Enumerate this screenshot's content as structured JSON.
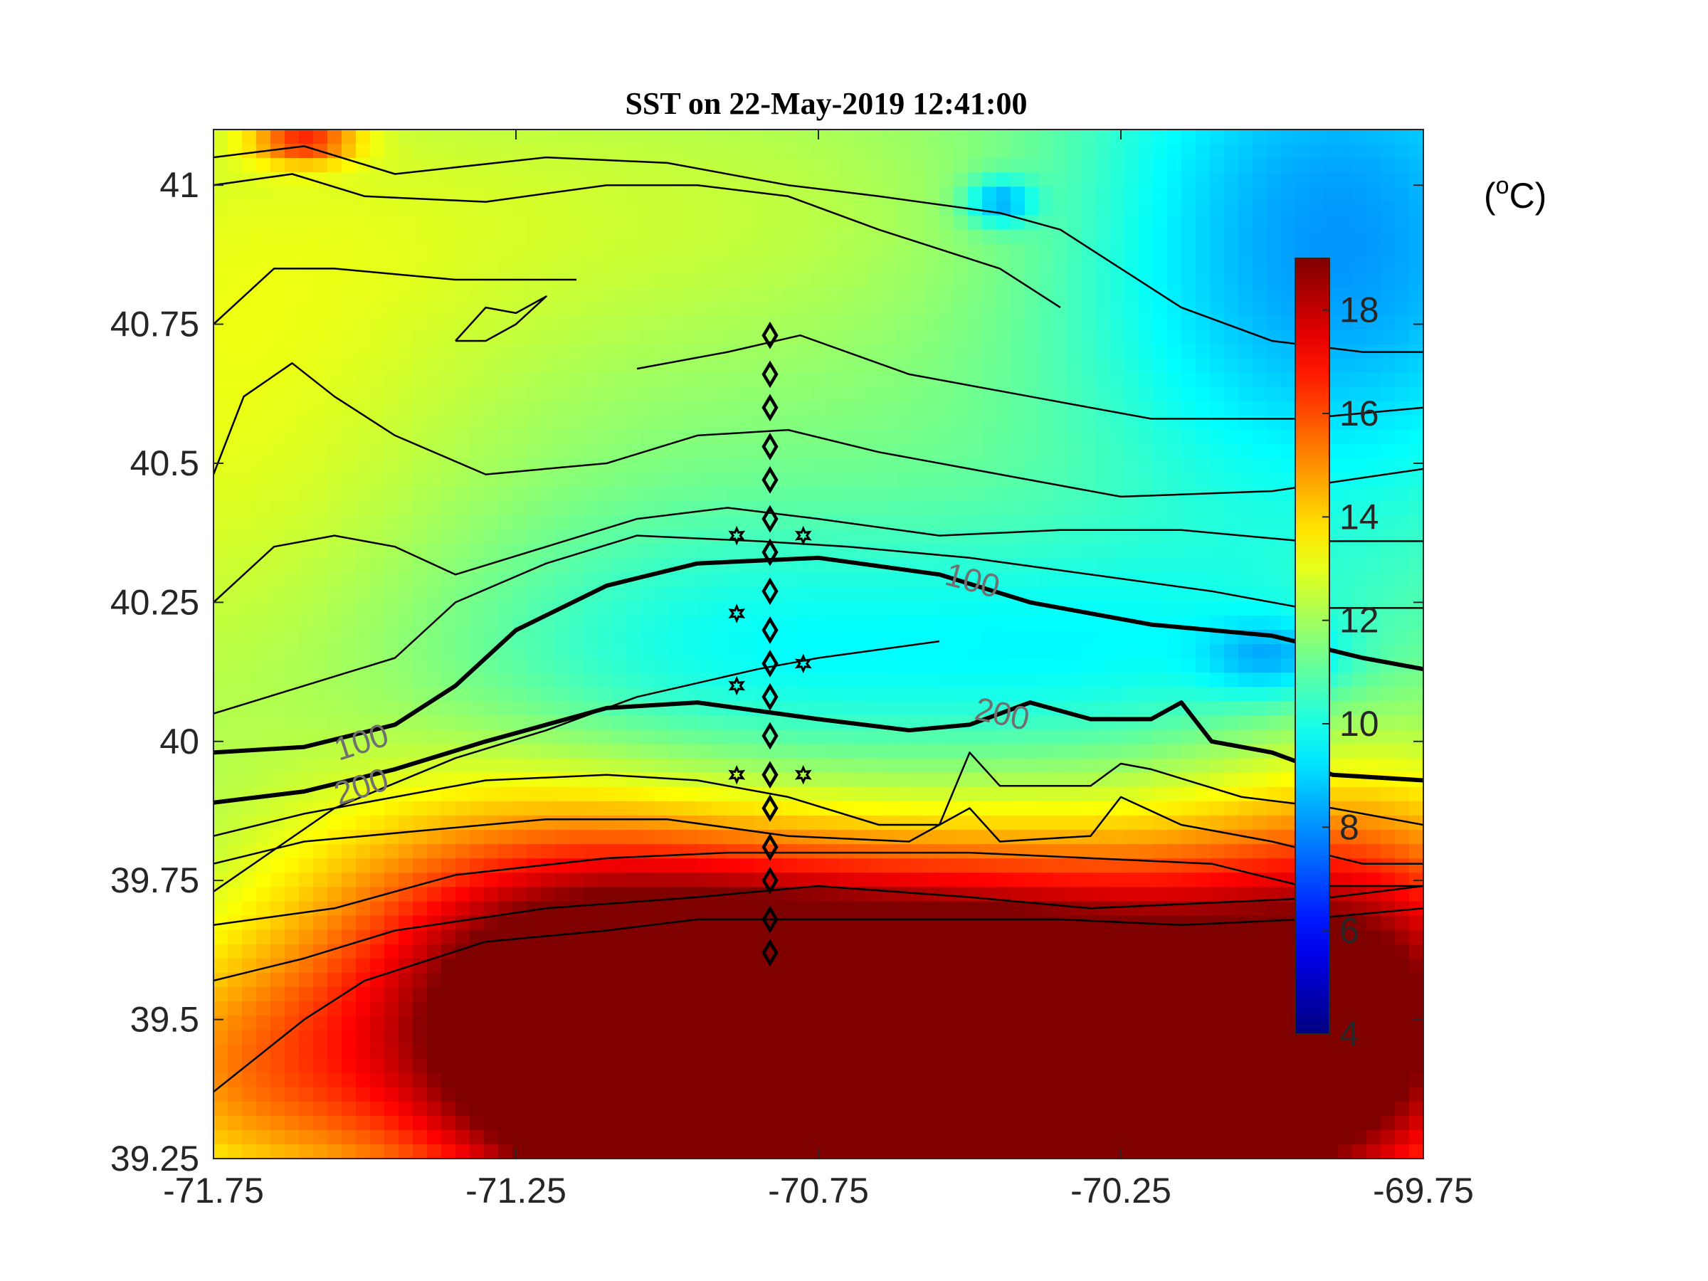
{
  "chart_data": {
    "type": "heatmap",
    "title": "SST on 22-May-2019 12:41:00",
    "xlabel": "",
    "ylabel": "",
    "xlim": [
      -71.75,
      -69.75
    ],
    "ylim": [
      39.25,
      41.1
    ],
    "x_ticks": [
      -71.75,
      -71.25,
      -70.75,
      -70.25,
      -69.75
    ],
    "x_tick_labels": [
      "-71.75",
      "-71.25",
      "-70.75",
      "-70.25",
      "-69.75"
    ],
    "y_ticks": [
      39.25,
      39.5,
      39.75,
      40,
      40.25,
      40.5,
      40.75,
      41
    ],
    "y_tick_labels": [
      "39.25",
      "39.5",
      "39.75",
      "40",
      "40.25",
      "40.5",
      "40.75",
      "41"
    ],
    "colorbar": {
      "unit_prefix": "(",
      "unit_sup": "o",
      "unit_suffix": "C)",
      "range": [
        4,
        19
      ],
      "ticks": [
        4,
        6,
        8,
        10,
        12,
        14,
        16,
        18
      ],
      "tick_labels": [
        "4",
        "6",
        "8",
        "10",
        "12",
        "14",
        "16",
        "18"
      ],
      "colormap": "jet"
    },
    "sst_field": {
      "description_units": "degrees C",
      "background": 11.5,
      "blobs": [
        {
          "lon": -71.75,
          "lat": 40.6,
          "slon": 0.35,
          "slat": 0.45,
          "amp": 1.5
        },
        {
          "lon": -71.0,
          "lat": 40.95,
          "slon": 0.5,
          "slat": 0.2,
          "amp": 1.0
        },
        {
          "lon": -71.6,
          "lat": 41.08,
          "slon": 0.06,
          "slat": 0.03,
          "amp": 4.0
        },
        {
          "lon": -70.9,
          "lat": 40.15,
          "slon": 0.35,
          "slat": 0.18,
          "amp": -1.8
        },
        {
          "lon": -70.25,
          "lat": 40.15,
          "slon": 0.3,
          "slat": 0.15,
          "amp": -1.5
        },
        {
          "lon": -69.9,
          "lat": 40.9,
          "slon": 0.3,
          "slat": 0.35,
          "amp": -3.5
        },
        {
          "lon": -70.45,
          "lat": 40.97,
          "slon": 0.04,
          "slat": 0.03,
          "amp": -3.0
        },
        {
          "lon": -70.0,
          "lat": 40.15,
          "slon": 0.08,
          "slat": 0.05,
          "amp": -2.0
        },
        {
          "lon": -71.2,
          "lat": 39.65,
          "slon": 0.3,
          "slat": 0.2,
          "amp": 4.5
        },
        {
          "lon": -70.6,
          "lat": 39.38,
          "slon": 0.45,
          "slat": 0.22,
          "amp": 11.0
        },
        {
          "lon": -70.3,
          "lat": 39.45,
          "slon": 0.45,
          "slat": 0.25,
          "amp": 6.0
        },
        {
          "lon": -71.0,
          "lat": 39.4,
          "slon": 0.3,
          "slat": 0.2,
          "amp": 5.0
        },
        {
          "lon": -69.85,
          "lat": 39.6,
          "slon": 0.2,
          "slat": 0.25,
          "amp": 4.0
        },
        {
          "lon": -71.7,
          "lat": 39.4,
          "slon": 0.2,
          "slat": 0.15,
          "amp": 2.5
        }
      ]
    },
    "isobath_labels": [
      {
        "text": "100",
        "lon": -71.5,
        "lat": 39.98,
        "rotate": -18
      },
      {
        "text": "200",
        "lon": -71.5,
        "lat": 39.9,
        "rotate": -18
      },
      {
        "text": "100",
        "lon": -70.5,
        "lat": 40.27,
        "rotate": 15
      },
      {
        "text": "200",
        "lon": -70.45,
        "lat": 40.03,
        "rotate": 12
      }
    ],
    "isobath_100_lonlat": [
      [
        -71.75,
        39.98
      ],
      [
        -71.6,
        39.99
      ],
      [
        -71.45,
        40.03
      ],
      [
        -71.35,
        40.1
      ],
      [
        -71.25,
        40.2
      ],
      [
        -71.1,
        40.28
      ],
      [
        -70.95,
        40.32
      ],
      [
        -70.75,
        40.33
      ],
      [
        -70.55,
        40.3
      ],
      [
        -70.4,
        40.25
      ],
      [
        -70.2,
        40.21
      ],
      [
        -70.0,
        40.19
      ],
      [
        -69.85,
        40.15
      ],
      [
        -69.75,
        40.13
      ]
    ],
    "isobath_200_lonlat": [
      [
        -71.75,
        39.89
      ],
      [
        -71.6,
        39.91
      ],
      [
        -71.45,
        39.95
      ],
      [
        -71.3,
        40.0
      ],
      [
        -71.1,
        40.06
      ],
      [
        -70.95,
        40.07
      ],
      [
        -70.75,
        40.04
      ],
      [
        -70.6,
        40.02
      ],
      [
        -70.5,
        40.03
      ],
      [
        -70.4,
        40.07
      ],
      [
        -70.3,
        40.04
      ],
      [
        -70.2,
        40.04
      ],
      [
        -70.15,
        40.07
      ],
      [
        -70.1,
        40.0
      ],
      [
        -70.0,
        39.98
      ],
      [
        -69.9,
        39.94
      ],
      [
        -69.75,
        39.93
      ]
    ],
    "thin_contours_lonlat": [
      [
        [
          -71.75,
          39.73
        ],
        [
          -71.55,
          39.88
        ],
        [
          -71.35,
          39.97
        ],
        [
          -71.2,
          40.02
        ],
        [
          -71.05,
          40.08
        ],
        [
          -70.85,
          40.13
        ],
        [
          -70.75,
          40.15
        ],
        [
          -70.55,
          40.18
        ]
      ],
      [
        [
          -71.75,
          39.83
        ],
        [
          -71.6,
          39.87
        ],
        [
          -71.45,
          39.9
        ],
        [
          -71.3,
          39.93
        ],
        [
          -71.1,
          39.94
        ],
        [
          -70.95,
          39.93
        ],
        [
          -70.8,
          39.9
        ],
        [
          -70.65,
          39.85
        ],
        [
          -70.55,
          39.85
        ],
        [
          -70.5,
          39.98
        ],
        [
          -70.45,
          39.92
        ],
        [
          -70.3,
          39.92
        ],
        [
          -70.25,
          39.96
        ],
        [
          -70.2,
          39.95
        ],
        [
          -70.05,
          39.9
        ],
        [
          -69.9,
          39.88
        ],
        [
          -69.75,
          39.85
        ]
      ],
      [
        [
          -71.75,
          39.78
        ],
        [
          -71.6,
          39.82
        ],
        [
          -71.4,
          39.84
        ],
        [
          -71.2,
          39.86
        ],
        [
          -71.0,
          39.86
        ],
        [
          -70.8,
          39.83
        ],
        [
          -70.6,
          39.82
        ],
        [
          -70.5,
          39.88
        ],
        [
          -70.45,
          39.82
        ],
        [
          -70.3,
          39.83
        ],
        [
          -70.25,
          39.9
        ],
        [
          -70.15,
          39.85
        ],
        [
          -70.0,
          39.82
        ],
        [
          -69.85,
          39.78
        ],
        [
          -69.75,
          39.78
        ]
      ],
      [
        [
          -71.75,
          39.67
        ],
        [
          -71.55,
          39.7
        ],
        [
          -71.35,
          39.76
        ],
        [
          -71.1,
          39.79
        ],
        [
          -70.9,
          39.8
        ],
        [
          -70.7,
          39.8
        ],
        [
          -70.5,
          39.8
        ],
        [
          -70.3,
          39.79
        ],
        [
          -70.1,
          39.78
        ],
        [
          -69.95,
          39.74
        ],
        [
          -69.75,
          39.74
        ]
      ],
      [
        [
          -71.75,
          39.57
        ],
        [
          -71.6,
          39.61
        ],
        [
          -71.45,
          39.66
        ],
        [
          -71.2,
          39.7
        ],
        [
          -70.95,
          39.72
        ],
        [
          -70.75,
          39.74
        ],
        [
          -70.5,
          39.72
        ],
        [
          -70.3,
          39.7
        ],
        [
          -70.1,
          39.71
        ],
        [
          -69.9,
          39.72
        ],
        [
          -69.75,
          39.74
        ]
      ],
      [
        [
          -71.75,
          39.37
        ],
        [
          -71.6,
          39.5
        ],
        [
          -71.5,
          39.57
        ],
        [
          -71.3,
          39.64
        ],
        [
          -71.1,
          39.66
        ],
        [
          -70.95,
          39.68
        ],
        [
          -70.75,
          39.68
        ],
        [
          -70.55,
          39.68
        ],
        [
          -70.35,
          39.68
        ],
        [
          -70.15,
          39.67
        ],
        [
          -69.95,
          39.68
        ],
        [
          -69.75,
          39.7
        ]
      ],
      [
        [
          -71.75,
          40.25
        ],
        [
          -71.65,
          40.35
        ],
        [
          -71.55,
          40.37
        ],
        [
          -71.45,
          40.35
        ],
        [
          -71.35,
          40.3
        ],
        [
          -71.2,
          40.35
        ],
        [
          -71.05,
          40.4
        ],
        [
          -70.9,
          40.42
        ],
        [
          -70.75,
          40.4
        ],
        [
          -70.55,
          40.37
        ],
        [
          -70.35,
          40.38
        ],
        [
          -70.15,
          40.38
        ],
        [
          -69.95,
          40.36
        ],
        [
          -69.75,
          40.36
        ]
      ],
      [
        [
          -71.75,
          40.05
        ],
        [
          -71.6,
          40.1
        ],
        [
          -71.45,
          40.15
        ],
        [
          -71.35,
          40.25
        ],
        [
          -71.2,
          40.32
        ],
        [
          -71.05,
          40.37
        ],
        [
          -70.85,
          40.36
        ],
        [
          -70.7,
          40.35
        ],
        [
          -70.5,
          40.33
        ],
        [
          -70.3,
          40.3
        ],
        [
          -70.1,
          40.27
        ],
        [
          -69.95,
          40.24
        ],
        [
          -69.75,
          40.24
        ]
      ],
      [
        [
          -71.75,
          40.48
        ],
        [
          -71.7,
          40.62
        ],
        [
          -71.62,
          40.68
        ],
        [
          -71.55,
          40.62
        ],
        [
          -71.45,
          40.55
        ],
        [
          -71.3,
          40.48
        ],
        [
          -71.1,
          40.5
        ],
        [
          -70.95,
          40.55
        ],
        [
          -70.8,
          40.56
        ],
        [
          -70.65,
          40.52
        ],
        [
          -70.45,
          40.48
        ],
        [
          -70.25,
          40.44
        ],
        [
          -70.0,
          40.45
        ],
        [
          -69.75,
          40.49
        ]
      ],
      [
        [
          -71.05,
          40.67
        ],
        [
          -70.9,
          40.7
        ],
        [
          -70.78,
          40.73
        ],
        [
          -70.6,
          40.66
        ],
        [
          -70.4,
          40.62
        ],
        [
          -70.2,
          40.58
        ],
        [
          -69.95,
          40.58
        ],
        [
          -69.75,
          40.6
        ]
      ],
      [
        [
          -71.75,
          40.75
        ],
        [
          -71.65,
          40.85
        ],
        [
          -71.55,
          40.85
        ],
        [
          -71.45,
          40.84
        ],
        [
          -71.35,
          40.83
        ],
        [
          -71.15,
          40.83
        ]
      ],
      [
        [
          -71.75,
          41.0
        ],
        [
          -71.62,
          41.02
        ],
        [
          -71.5,
          40.98
        ],
        [
          -71.3,
          40.97
        ],
        [
          -71.1,
          41.0
        ],
        [
          -70.95,
          41.0
        ],
        [
          -70.8,
          40.98
        ],
        [
          -70.65,
          40.92
        ],
        [
          -70.45,
          40.85
        ],
        [
          -70.35,
          40.78
        ]
      ],
      [
        [
          -71.75,
          41.05
        ],
        [
          -71.6,
          41.07
        ],
        [
          -71.45,
          41.02
        ],
        [
          -71.2,
          41.05
        ],
        [
          -71.0,
          41.04
        ],
        [
          -70.8,
          41.0
        ],
        [
          -70.65,
          40.98
        ],
        [
          -70.45,
          40.95
        ],
        [
          -70.35,
          40.92
        ],
        [
          -70.25,
          40.85
        ],
        [
          -70.15,
          40.78
        ],
        [
          -70.0,
          40.72
        ],
        [
          -69.85,
          40.7
        ],
        [
          -69.75,
          40.7
        ]
      ],
      [
        [
          -71.35,
          40.72
        ],
        [
          -71.3,
          40.78
        ],
        [
          -71.25,
          40.77
        ],
        [
          -71.2,
          40.8
        ],
        [
          -71.25,
          40.75
        ],
        [
          -71.3,
          40.72
        ],
        [
          -71.35,
          40.72
        ]
      ]
    ],
    "station_diamonds_lonlat": [
      [
        -70.83,
        40.73
      ],
      [
        -70.83,
        40.66
      ],
      [
        -70.83,
        40.6
      ],
      [
        -70.83,
        40.53
      ],
      [
        -70.83,
        40.47
      ],
      [
        -70.83,
        40.4
      ],
      [
        -70.83,
        40.34
      ],
      [
        -70.83,
        40.27
      ],
      [
        -70.83,
        40.2
      ],
      [
        -70.83,
        40.14
      ],
      [
        -70.83,
        40.08
      ],
      [
        -70.83,
        40.01
      ],
      [
        -70.83,
        39.94
      ],
      [
        -70.83,
        39.88
      ],
      [
        -70.83,
        39.81
      ],
      [
        -70.83,
        39.75
      ],
      [
        -70.83,
        39.68
      ],
      [
        -70.83,
        39.62
      ]
    ],
    "station_stars_lonlat": [
      [
        -70.885,
        40.37
      ],
      [
        -70.775,
        40.37
      ],
      [
        -70.885,
        40.23
      ],
      [
        -70.775,
        40.14
      ],
      [
        -70.885,
        40.1
      ],
      [
        -70.885,
        39.94
      ],
      [
        -70.775,
        39.94
      ]
    ]
  }
}
